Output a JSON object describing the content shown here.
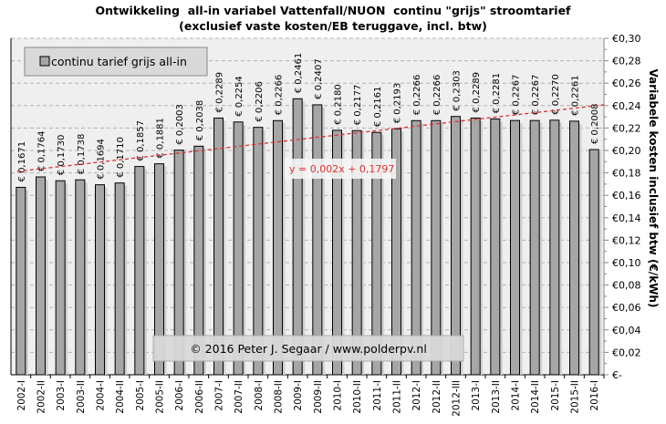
{
  "chart_data": {
    "type": "bar",
    "title": "Ontwikkeling  all-in variabel Vattenfall/NUON  continu \"grijs\" stroomtarief",
    "subtitle": "(exclusief vaste kosten/EB teruggave, incl. btw)",
    "xlabel": "",
    "ylabel": "Variabele kosten inclusief btw (€/kWh)",
    "ylim": [
      0,
      0.3
    ],
    "yticks": [
      "€-",
      "€0,02",
      "€0,04",
      "€0,06",
      "€0,08",
      "€0,10",
      "€0,12",
      "€0,14",
      "€0,16",
      "€0,18",
      "€0,20",
      "€0,22",
      "€0,24",
      "€0,26",
      "€0,28",
      "€0,30"
    ],
    "grid": true,
    "legend": {
      "position": "top-left",
      "entries": [
        "continu tarief grijs all-in"
      ]
    },
    "categories": [
      "2002-I",
      "2002-II",
      "2003-I",
      "2003-II",
      "2004-I",
      "2004-II",
      "2005-I",
      "2005-II",
      "2006-I",
      "2006-II",
      "2007-I",
      "2007-II",
      "2008-I",
      "2008-II",
      "2009-I",
      "2009-II",
      "2010-I",
      "2010-II",
      "2011-I",
      "2011-II",
      "2012-I",
      "2012-II",
      "2012-III",
      "2013-I",
      "2013-II",
      "2014-I",
      "2014-II",
      "2015-I",
      "2015-II",
      "2016-I"
    ],
    "series": [
      {
        "name": "continu tarief grijs all-in",
        "values": [
          0.1671,
          0.1764,
          0.173,
          0.1738,
          0.1694,
          0.171,
          0.1857,
          0.1881,
          0.2003,
          0.2038,
          0.2289,
          0.2254,
          0.2206,
          0.2266,
          0.2461,
          0.2407,
          0.218,
          0.2177,
          0.2161,
          0.2193,
          0.2266,
          0.2266,
          0.2303,
          0.2289,
          0.2281,
          0.2267,
          0.2267,
          0.227,
          0.2261,
          0.2008
        ],
        "labels": [
          "€ 0,1671",
          "€ 0,1764",
          "€ 0,1730",
          "€ 0,1738",
          "€ 0,1694",
          "€ 0,1710",
          "€ 0,1857",
          "€ 0,1881",
          "€ 0,2003",
          "€ 0,2038",
          "€ 0,2289",
          "€ 0,2254",
          "€ 0,2206",
          "€ 0,2266",
          "€ 0,2461",
          "€ 0,2407",
          "€ 0,2180",
          "€ 0,2177",
          "€ 0,2161",
          "€ 0,2193",
          "€ 0,2266",
          "€ 0,2266",
          "€ 0,2303",
          "€ 0,2289",
          "€ 0,2281",
          "€ 0,2267",
          "€ 0,2267",
          "€ 0,2270",
          "€ 0,2261",
          "€ 0,2008"
        ]
      }
    ],
    "trendline": {
      "slope": 0.002,
      "intercept": 0.1797,
      "label": "y = 0,002x + 0,1797"
    },
    "annotation": "© 2016  Peter J. Segaar / www.polderpv.nl",
    "colors": {
      "bar": "#a6a6a6",
      "plot_bg": "#efefef",
      "trend": "#e03030",
      "legend_bg": "#d9d9d9"
    }
  }
}
